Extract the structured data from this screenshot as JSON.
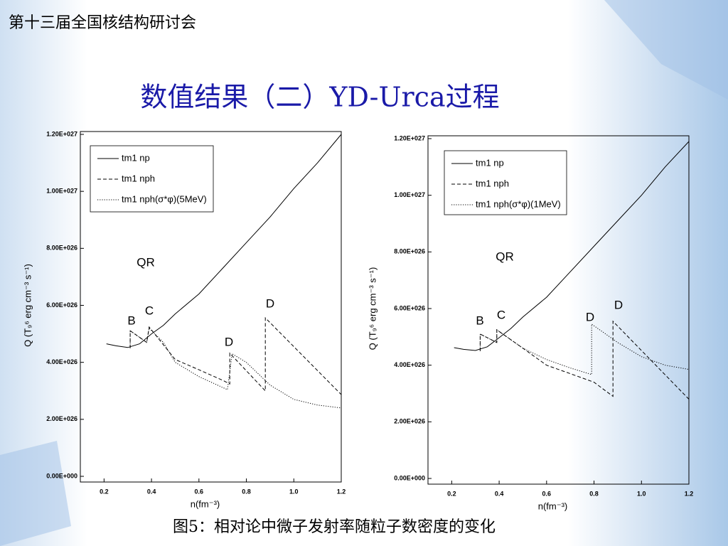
{
  "header": "第十三届全国核结构研讨会",
  "title": "数值结果（二）YD-Urca过程",
  "caption": "图5：相对论中微子发射率随粒子数密度的变化",
  "chart_data": [
    {
      "type": "line",
      "xlabel": "n(fm⁻³)",
      "ylabel": "Q (T₉⁶ erg cm⁻³ s⁻¹)",
      "xlim": [
        0.1,
        1.2
      ],
      "ylim": [
        0,
        1.2e+27
      ],
      "xticks": [
        0.2,
        0.4,
        0.6,
        0.8,
        {
          "value": 1,
          "label": "1.0"
        },
        1.2
      ],
      "yticks": [
        {
          "value": 0,
          "label": "0.00E+000"
        },
        {
          "value": 2e+26,
          "label": "2.00E+026"
        },
        {
          "value": 4e+26,
          "label": "4.00E+026"
        },
        {
          "value": 6e+26,
          "label": "6.00E+026"
        },
        {
          "value": 8e+26,
          "label": "8.00E+026"
        },
        {
          "value": 1e+27,
          "label": "1.00E+027"
        },
        {
          "value": 1.2e+27,
          "label": "1.20E+027"
        }
      ],
      "grid": false,
      "series": [
        {
          "name": "tm1 np",
          "color": "#000000",
          "style": "solid",
          "x": [
            0.21,
            0.25,
            0.3,
            0.35,
            0.4,
            0.45,
            0.5,
            0.6,
            0.7,
            0.8,
            0.9,
            1.0,
            1.1,
            1.2
          ],
          "values": [
            4.65e+26,
            4.58e+26,
            4.52e+26,
            4.65e+26,
            5e+26,
            5.3e+26,
            5.7e+26,
            6.4e+26,
            7.3e+26,
            8.2e+26,
            9.1e+26,
            1.01e+27,
            1.1e+27,
            1.2e+27
          ]
        },
        {
          "name": "tm1 nph",
          "color": "#000000",
          "style": "dashed",
          "x": [
            0.31,
            0.31,
            0.38,
            0.39,
            0.5,
            0.6,
            0.7,
            0.73,
            0.73,
            0.88,
            0.88,
            1.2
          ],
          "values": [
            4.5e+26,
            5.11e+26,
            4.7e+26,
            5.24e+26,
            4.1e+26,
            3.74e+26,
            3.37e+26,
            3.24e+26,
            4.32e+26,
            3e+26,
            5.56e+26,
            2.87e+26
          ]
        },
        {
          "name": "tm1 nph(σ*φ)(5MeV)",
          "color": "#000000",
          "style": "dotted",
          "x": [
            0.31,
            0.31,
            0.38,
            0.39,
            0.45,
            0.5,
            0.6,
            0.72,
            0.74,
            0.8,
            0.9,
            1.0,
            1.1,
            1.2
          ],
          "values": [
            4.5e+26,
            5.11e+26,
            4.7e+26,
            5.2e+26,
            4.7e+26,
            4e+26,
            3.5e+26,
            3.04e+26,
            4.3e+26,
            4e+26,
            3.2e+26,
            2.7e+26,
            2.5e+26,
            2.4e+26
          ]
        }
      ],
      "annotations": [
        "QR",
        "B",
        "C",
        "D",
        "D"
      ]
    },
    {
      "type": "line",
      "xlabel": "n(fm⁻³)",
      "ylabel": "Q (T₉⁶ erg cm⁻³ s⁻¹)",
      "xlim": [
        0.1,
        1.2
      ],
      "ylim": [
        0,
        1.2e+27
      ],
      "xticks": [
        0.2,
        0.4,
        0.6,
        0.8,
        {
          "value": 1,
          "label": "1.0"
        },
        1.2
      ],
      "yticks": [
        {
          "value": 0,
          "label": "0.00E+000"
        },
        {
          "value": 2e+26,
          "label": "2.00E+026"
        },
        {
          "value": 4e+26,
          "label": "4.00E+026"
        },
        {
          "value": 6e+26,
          "label": "6.00E+026"
        },
        {
          "value": 8e+26,
          "label": "8.00E+026"
        },
        {
          "value": 1e+27,
          "label": "1.00E+027"
        },
        {
          "value": 1.2e+27,
          "label": "1.20E+027"
        }
      ],
      "grid": false,
      "series": [
        {
          "name": "tm1 np",
          "color": "#000000",
          "style": "solid",
          "x": [
            0.21,
            0.25,
            0.3,
            0.35,
            0.4,
            0.45,
            0.5,
            0.6,
            0.7,
            0.8,
            0.9,
            1.0,
            1.1,
            1.2
          ],
          "values": [
            4.62e+26,
            4.56e+26,
            4.52e+26,
            4.65e+26,
            4.97e+26,
            5.3e+26,
            5.7e+26,
            6.4e+26,
            7.3e+26,
            8.2e+26,
            9.1e+26,
            1e+27,
            1.1e+27,
            1.19e+27
          ]
        },
        {
          "name": "tm1 nph",
          "color": "#000000",
          "style": "dashed",
          "x": [
            0.32,
            0.32,
            0.39,
            0.39,
            0.5,
            0.6,
            0.7,
            0.8,
            0.88,
            0.88,
            1.2
          ],
          "values": [
            4.5e+26,
            5.1e+26,
            4.8e+26,
            5.25e+26,
            4.6e+26,
            4e+26,
            3.7e+26,
            3.4e+26,
            2.9e+26,
            5.55e+26,
            2.8e+26
          ]
        },
        {
          "name": "tm1 nph(σ*φ)(1MeV)",
          "color": "#000000",
          "style": "dotted",
          "x": [
            0.32,
            0.32,
            0.39,
            0.39,
            0.5,
            0.6,
            0.7,
            0.79,
            0.79,
            0.9,
            1.0,
            1.1,
            1.2
          ],
          "values": [
            4.5e+26,
            5.1e+26,
            4.8e+26,
            5.25e+26,
            4.6e+26,
            4.2e+26,
            3.9e+26,
            3.67e+26,
            5.45e+26,
            4.8e+26,
            4.3e+26,
            4e+26,
            3.85e+26
          ]
        }
      ],
      "annotations": [
        "QR",
        "B",
        "C",
        "D",
        "D"
      ]
    }
  ]
}
